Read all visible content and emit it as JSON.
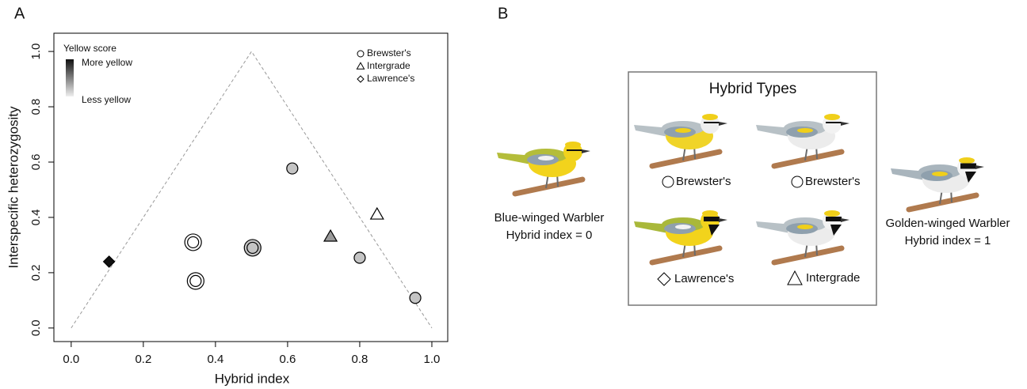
{
  "chart_data": {
    "type": "scatter",
    "panel_label": "A",
    "xlabel": "Hybrid index",
    "ylabel": "Interspecific heterozygosity",
    "xlim": [
      -0.048,
      1.044
    ],
    "ylim": [
      -0.049,
      1.066
    ],
    "xticks": [
      {
        "value": 0,
        "label": "0.0"
      },
      {
        "value": 0.2,
        "label": "0.2"
      },
      {
        "value": 0.4,
        "label": "0.4"
      },
      {
        "value": 0.6,
        "label": "0.6"
      },
      {
        "value": 0.8,
        "label": "0.8"
      },
      {
        "value": 1,
        "label": "1.0"
      }
    ],
    "yticks": [
      {
        "value": 0,
        "label": "0.0"
      },
      {
        "value": 0.2,
        "label": "0.2"
      },
      {
        "value": 0.4,
        "label": "0.4"
      },
      {
        "value": 0.6,
        "label": "0.6"
      },
      {
        "value": 0.8,
        "label": "0.8"
      },
      {
        "value": 1,
        "label": "1.0"
      }
    ],
    "reference_line": {
      "x": [
        0,
        0.5,
        1
      ],
      "values": [
        0,
        1,
        0
      ]
    },
    "color_legend": {
      "title": "Yellow score",
      "high": "More yellow",
      "low": "Less yellow"
    },
    "series": [
      {
        "name": "Brewster's",
        "marker": "circle",
        "x": [
          0.338,
          0.338,
          0.345,
          0.345,
          0.503,
          0.503,
          0.613,
          0.8,
          0.954
        ],
        "values": [
          0.31,
          0.31,
          0.17,
          0.17,
          0.29,
          0.29,
          0.577,
          0.254,
          0.109
        ],
        "colors": [
          "#ffffff",
          "#ffffff",
          "#ffffff",
          "#ffffff",
          "#c4c4c4",
          "#c4c4c4",
          "#c4c4c4",
          "#c4c4c4",
          "#c4c4c4"
        ]
      },
      {
        "name": "Intergrade",
        "marker": "triangle",
        "x": [
          0.719,
          0.848
        ],
        "values": [
          0.33,
          0.41
        ],
        "colors": [
          "#9a9a9a",
          "#ffffff"
        ]
      },
      {
        "name": "Lawrence's",
        "marker": "diamond",
        "x": [
          0.105
        ],
        "values": [
          0.24
        ],
        "colors": [
          "#111111"
        ]
      }
    ]
  },
  "panel_b": {
    "label": "B",
    "title": "Hybrid Types",
    "left_parent": {
      "name": "Blue-winged Warbler",
      "index_label": "Hybrid index = 0"
    },
    "right_parent": {
      "name": "Golden-winged Warbler",
      "index_label": "Hybrid index = 1"
    },
    "hybrids": [
      {
        "name": "Brewster's"
      },
      {
        "name": "Brewster's"
      },
      {
        "name": "Lawrence's"
      },
      {
        "name": "Intergrade"
      }
    ]
  }
}
